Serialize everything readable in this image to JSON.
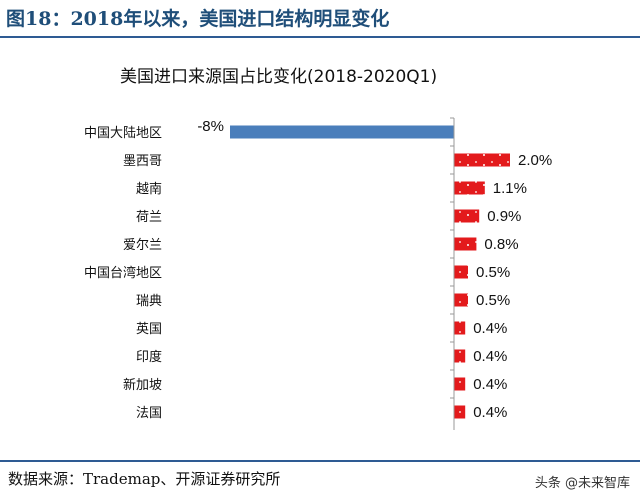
{
  "figure": {
    "title": "图18：2018年以来，美国进口结构明显变化",
    "source": "数据来源：Trademap、开源证券研究所",
    "watermark": "头条 @未来智库"
  },
  "chart_data": {
    "type": "bar",
    "orientation": "horizontal",
    "title": "美国进口来源国占比变化(2018-2020Q1)",
    "categories": [
      "中国大陆地区",
      "墨西哥",
      "越南",
      "荷兰",
      "爱尔兰",
      "中国台湾地区",
      "瑞典",
      "英国",
      "印度",
      "新加坡",
      "法国"
    ],
    "values": [
      -8.0,
      2.0,
      1.1,
      0.9,
      0.8,
      0.5,
      0.5,
      0.4,
      0.4,
      0.4,
      0.4
    ],
    "data_labels": [
      "-8%",
      "2.0%",
      "1.1%",
      "0.9%",
      "0.8%",
      "0.5%",
      "0.5%",
      "0.4%",
      "0.4%",
      "0.4%",
      "0.4%"
    ],
    "xlim": [
      -8.5,
      3.0
    ],
    "xlabel": "",
    "ylabel": "",
    "grid": false,
    "colors": {
      "negative": "#4a7ebb",
      "positive": "#e31a1c"
    }
  }
}
